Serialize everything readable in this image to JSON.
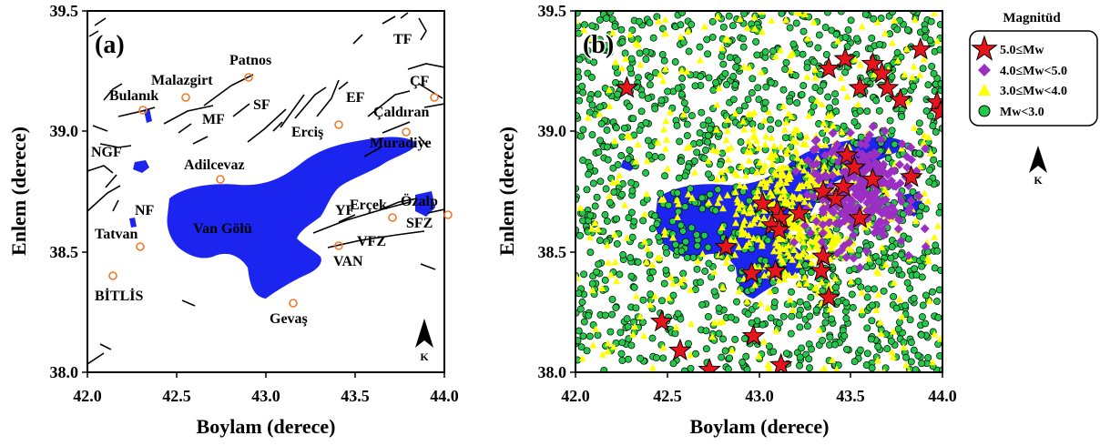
{
  "panel_a": {
    "label": "(a)",
    "xlabel": "Boylam (derece)",
    "ylabel": "Enlem (derece)",
    "x_ticks": [
      "42.0",
      "42.5",
      "43.0",
      "43.5",
      "44.0"
    ],
    "y_ticks": [
      "38.0",
      "38.5",
      "39.0",
      "39.5"
    ],
    "north_label": "K",
    "cities": [
      {
        "name": "Patnos",
        "lon": 42.87,
        "lat": 39.23
      },
      {
        "name": "Malazgirt",
        "lon": 42.53,
        "lat": 39.14
      },
      {
        "name": "Bulanık",
        "lon": 42.27,
        "lat": 39.09
      },
      {
        "name": "Erciş",
        "lon": 43.36,
        "lat": 39.03
      },
      {
        "name": "Çaldıran",
        "lon": 43.91,
        "lat": 39.14
      },
      {
        "name": "Muradiye",
        "lon": 43.76,
        "lat": 39.0
      },
      {
        "name": "Adilcevaz",
        "lon": 42.73,
        "lat": 38.8
      },
      {
        "name": "Erçek",
        "lon": 43.66,
        "lat": 38.65
      },
      {
        "name": "Özalp",
        "lon": 43.98,
        "lat": 38.66
      },
      {
        "name": "Tatvan",
        "lon": 42.29,
        "lat": 38.51
      },
      {
        "name": "VAN",
        "lon": 43.37,
        "lat": 38.52
      },
      {
        "name": "BİTLİS",
        "lon": 42.12,
        "lat": 38.4
      },
      {
        "name": "Gevaş",
        "lon": 43.1,
        "lat": 38.3
      }
    ],
    "fault_labels": [
      "TF",
      "ÇF",
      "EF",
      "SF",
      "MF",
      "NGF",
      "NF",
      "YF",
      "SFZ",
      "VFZ"
    ],
    "lake_label": "Van Gölü"
  },
  "panel_b": {
    "label": "(b)",
    "xlabel": "Boylam (derece)",
    "ylabel": "Enlem (derece)",
    "x_ticks": [
      "42.0",
      "42.5",
      "43.0",
      "43.5",
      "44.0"
    ],
    "y_ticks": [
      "38.0",
      "38.5",
      "39.0",
      "39.5"
    ],
    "north_label": "K",
    "legend_title": "Magnitüd",
    "legend": [
      "5.0≤Mw",
      "4.0≤Mw<5.0",
      "3.0≤Mw<4.0",
      "Mw<3.0"
    ]
  },
  "chart_data": {
    "type": "scatter",
    "xlim": [
      42.0,
      44.0
    ],
    "ylim": [
      38.0,
      39.5
    ],
    "xlabel": "Boylam (derece)",
    "ylabel": "Enlem (derece)",
    "series": [
      {
        "name": "5.0≤Mw",
        "marker": "star",
        "color": "#e8141c",
        "points": [
          [
            42.28,
            39.18
          ],
          [
            43.38,
            39.26
          ],
          [
            43.47,
            39.3
          ],
          [
            43.62,
            39.28
          ],
          [
            43.67,
            39.24
          ],
          [
            43.55,
            39.18
          ],
          [
            43.7,
            39.18
          ],
          [
            43.77,
            39.13
          ],
          [
            43.88,
            39.34
          ],
          [
            43.97,
            39.12
          ],
          [
            43.99,
            39.08
          ],
          [
            43.48,
            38.9
          ],
          [
            43.52,
            38.85
          ],
          [
            43.62,
            38.8
          ],
          [
            43.83,
            38.81
          ],
          [
            43.35,
            38.75
          ],
          [
            43.42,
            38.72
          ],
          [
            43.46,
            38.77
          ],
          [
            43.02,
            38.7
          ],
          [
            43.1,
            38.67
          ],
          [
            43.12,
            38.64
          ],
          [
            43.22,
            38.66
          ],
          [
            43.07,
            38.61
          ],
          [
            43.11,
            38.59
          ],
          [
            43.55,
            38.64
          ],
          [
            42.82,
            38.52
          ],
          [
            42.96,
            38.41
          ],
          [
            43.09,
            38.42
          ],
          [
            43.35,
            38.48
          ],
          [
            43.34,
            38.42
          ],
          [
            43.38,
            38.31
          ],
          [
            42.47,
            38.21
          ],
          [
            42.97,
            38.15
          ],
          [
            42.57,
            38.09
          ],
          [
            42.73,
            38.01
          ],
          [
            43.12,
            38.03
          ]
        ]
      },
      {
        "name": "4.0≤Mw<5.0",
        "marker": "diamond",
        "color": "#9b2fc4",
        "points": []
      },
      {
        "name": "3.0≤Mw<4.0",
        "marker": "triangle",
        "color": "#ffff00",
        "points": []
      },
      {
        "name": "Mw<3.0",
        "marker": "circle",
        "color": "#22c94a",
        "points": []
      }
    ]
  }
}
